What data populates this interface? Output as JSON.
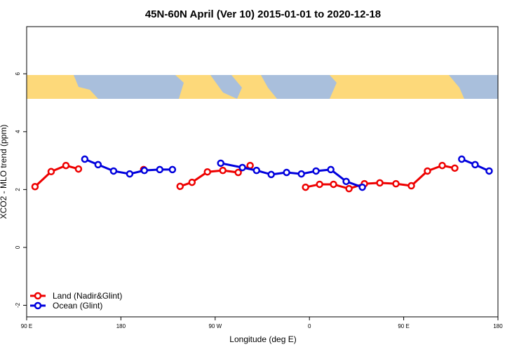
{
  "chart_data": {
    "type": "line",
    "title": "45N-60N April (Ver 10)   2015-01-01 to 2020-12-18",
    "x_label": "Longitude (deg E)",
    "y_label": "XCO2 - MLO trend (ppm)",
    "xlim": [
      90,
      540
    ],
    "xticks": [
      {
        "value": 90,
        "label": "90 E"
      },
      {
        "value": 180,
        "label": "180"
      },
      {
        "value": 270,
        "label": "90 W"
      },
      {
        "value": 360,
        "label": "0"
      },
      {
        "value": 450,
        "label": "90 E"
      },
      {
        "value": 540,
        "label": "180"
      }
    ],
    "ylim": [
      -2.4,
      7.63
    ],
    "yticks": [
      -2,
      0,
      2,
      4,
      6
    ],
    "legend": "bottom-left",
    "series": [
      {
        "name": "Land (Nadir&Glint)",
        "color": "#ee0000",
        "x": [
          98,
          113.4,
          127.5,
          139.5,
          null,
          201.7,
          null,
          236.5,
          247.9,
          262.6,
          277.3,
          292,
          303.4,
          null,
          356.3,
          369.7,
          383,
          397.8,
          412.5,
          427.2,
          442.6,
          457.3,
          472.7,
          486.8,
          498.8
        ],
        "values": [
          2.1,
          2.62,
          2.83,
          2.71,
          null,
          2.69,
          null,
          2.11,
          2.25,
          2.61,
          2.66,
          2.59,
          2.83,
          null,
          2.08,
          2.18,
          2.18,
          2.03,
          2.2,
          2.23,
          2.2,
          2.13,
          2.64,
          2.83,
          2.74
        ]
      },
      {
        "name": "Ocean (Glint)",
        "color": "#0000dd",
        "x": [
          145.5,
          158.2,
          173,
          188.4,
          202.4,
          217.1,
          229.2,
          null,
          275.3,
          296,
          309.5,
          323.5,
          338.2,
          352.3,
          366.3,
          380.4,
          395.1,
          410.5,
          null,
          505.4,
          518.2,
          531.6
        ],
        "values": [
          3.05,
          2.86,
          2.64,
          2.54,
          2.66,
          2.69,
          2.69,
          null,
          2.91,
          2.76,
          2.66,
          2.52,
          2.59,
          2.54,
          2.64,
          2.69,
          2.28,
          2.08,
          null,
          3.05,
          2.86,
          2.64
        ]
      }
    ]
  }
}
